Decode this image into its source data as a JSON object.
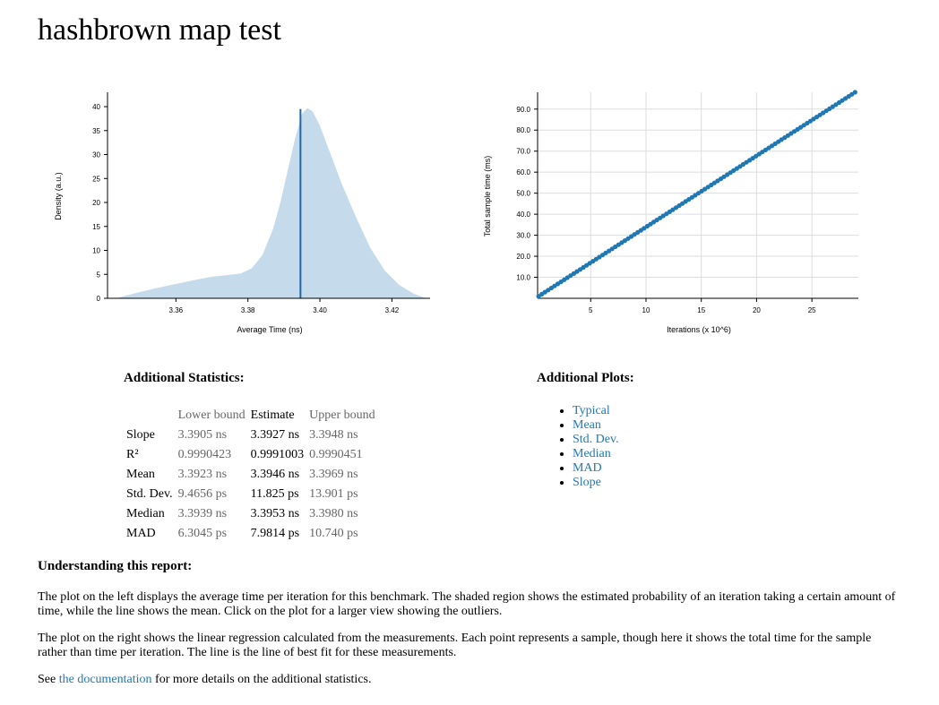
{
  "page": {
    "title": "hashbrown map test"
  },
  "pdf_plot": {
    "chart_data": {
      "type": "area",
      "xlabel": "Average Time (ns)",
      "ylabel": "Density (a.u.)",
      "xlim": [
        3.341,
        3.4306
      ],
      "ylim": [
        0,
        43
      ],
      "x_ticks": [
        3.36,
        3.38,
        3.4,
        3.42
      ],
      "y_ticks": [
        0,
        5,
        10,
        15,
        20,
        25,
        30,
        35,
        40
      ],
      "density_points": [
        [
          3.3434,
          0.0
        ],
        [
          3.345,
          0.35
        ],
        [
          3.35,
          1.3
        ],
        [
          3.355,
          2.2
        ],
        [
          3.36,
          3.0
        ],
        [
          3.365,
          3.8
        ],
        [
          3.37,
          4.5
        ],
        [
          3.375,
          4.9
        ],
        [
          3.378,
          5.2
        ],
        [
          3.381,
          6.2
        ],
        [
          3.384,
          9.0
        ],
        [
          3.387,
          14.5
        ],
        [
          3.389,
          20.0
        ],
        [
          3.391,
          26.5
        ],
        [
          3.393,
          33.0
        ],
        [
          3.395,
          38.5
        ],
        [
          3.3965,
          39.7
        ],
        [
          3.398,
          39.0
        ],
        [
          3.4,
          36.0
        ],
        [
          3.403,
          30.0
        ],
        [
          3.406,
          24.0
        ],
        [
          3.41,
          17.0
        ],
        [
          3.414,
          10.5
        ],
        [
          3.418,
          5.8
        ],
        [
          3.422,
          2.8
        ],
        [
          3.426,
          1.0
        ],
        [
          3.4295,
          0.0
        ]
      ],
      "mean": 3.3946,
      "mean_density": 39.5,
      "grid": false,
      "shaded_color": "#c5dbeb",
      "line_color": "#1f68a8"
    }
  },
  "regression_plot": {
    "chart_data": {
      "type": "scatter",
      "xlabel": "Iterations (x 10^6)",
      "ylabel": "Total sample time (ms)",
      "xlim": [
        0.2,
        29.2
      ],
      "ylim": [
        0,
        98
      ],
      "x_ticks": [
        5,
        10,
        15,
        20,
        25
      ],
      "y_tick_labels": [
        "10.0",
        "20.0",
        "30.0",
        "40.0",
        "50.0",
        "60.0",
        "70.0",
        "80.0",
        "90.0"
      ],
      "points_start": [
        0.29,
        0.98
      ],
      "points_end": [
        28.9,
        98.0
      ],
      "num_points": 100,
      "slope_ns": 3.3927,
      "grid": true,
      "point_color": "#1f78b4"
    }
  },
  "stats": {
    "heading": "Additional Statistics:",
    "columns": {
      "lower": "Lower bound",
      "estimate": "Estimate",
      "upper": "Upper bound"
    },
    "rows": [
      {
        "label": "Slope",
        "lower": "3.3905 ns",
        "estimate": "3.3927 ns",
        "upper": "3.3948 ns"
      },
      {
        "label": "R²",
        "lower": "0.9990423",
        "estimate": "0.9991003",
        "upper": "0.9990451"
      },
      {
        "label": "Mean",
        "lower": "3.3923 ns",
        "estimate": "3.3946 ns",
        "upper": "3.3969 ns"
      },
      {
        "label": "Std. Dev.",
        "lower": "9.4656 ps",
        "estimate": "11.825 ps",
        "upper": "13.901 ps"
      },
      {
        "label": "Median",
        "lower": "3.3939 ns",
        "estimate": "3.3953 ns",
        "upper": "3.3980 ns"
      },
      {
        "label": "MAD",
        "lower": "6.3045 ps",
        "estimate": "7.9814 ps",
        "upper": "10.740 ps"
      }
    ]
  },
  "plots": {
    "heading": "Additional Plots:",
    "items": [
      "Typical",
      "Mean",
      "Std. Dev.",
      "Median",
      "MAD",
      "Slope"
    ]
  },
  "explain": {
    "heading": "Understanding this report:",
    "p1": "The plot on the left displays the average time per iteration for this benchmark. The shaded region shows the estimated probability of an iteration taking a certain amount of time, while the line shows the mean. Click on the plot for a larger view showing the outliers.",
    "p2": "The plot on the right shows the linear regression calculated from the measurements. Each point represents a sample, though here it shows the total time for the sample rather than time per iteration. The line is the line of best fit for these measurements.",
    "p3_before": "See ",
    "p3_link": "the documentation",
    "p3_after": " for more details on the additional statistics."
  }
}
